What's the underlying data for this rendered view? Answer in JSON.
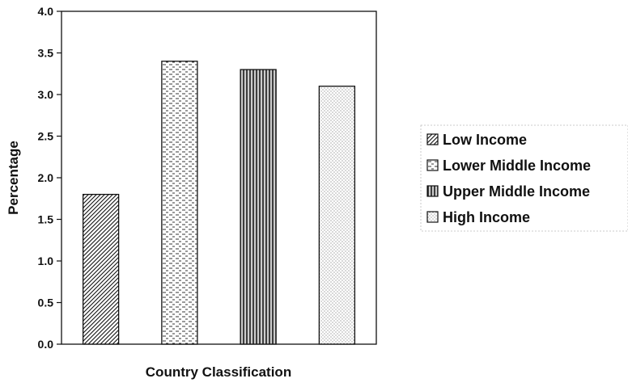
{
  "chart_data": {
    "type": "bar",
    "title": "",
    "xlabel": "Country Classification",
    "ylabel": "Percentage",
    "ylim": [
      0,
      4
    ],
    "yticks": [
      "0.0",
      "0.5",
      "1.0",
      "1.5",
      "2.0",
      "2.5",
      "3.0",
      "3.5",
      "4.0"
    ],
    "grid": false,
    "legend_position": "right",
    "categories": [
      "Low Income",
      "Lower Middle Income",
      "Upper Middle Income",
      "High Income"
    ],
    "values": [
      1.8,
      3.4,
      3.3,
      3.1
    ],
    "patterns": [
      "diagonal-hatch",
      "dashed-horizontal",
      "vertical-stripes",
      "dotted"
    ],
    "colors": {
      "ink": "#111111",
      "background": "#ffffff"
    }
  }
}
